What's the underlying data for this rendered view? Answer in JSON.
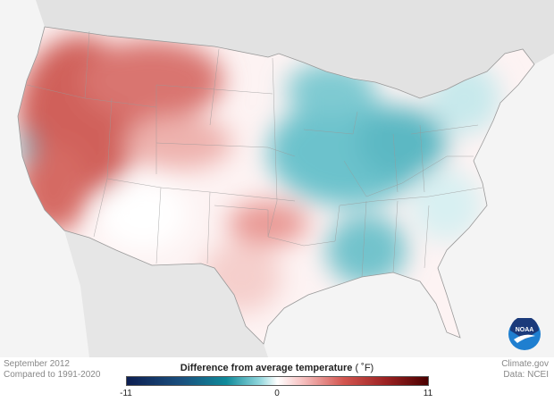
{
  "caption": {
    "period": "September 2012",
    "baseline": "Compared to 1991-2020"
  },
  "credit": {
    "site": "Climate.gov",
    "source": "Data: NCEI"
  },
  "legend": {
    "title": "Difference from average temperature",
    "unit": "( ˚F)",
    "min": "-11",
    "mid": "0",
    "max": "11"
  },
  "logo": {
    "text": "NOAA"
  },
  "colors": {
    "warm": "#c0403d",
    "cool": "#1aa0b0",
    "neutral": "#ffffff",
    "land_outside": "#e6e6e6",
    "water": "#f4f4f4"
  }
}
